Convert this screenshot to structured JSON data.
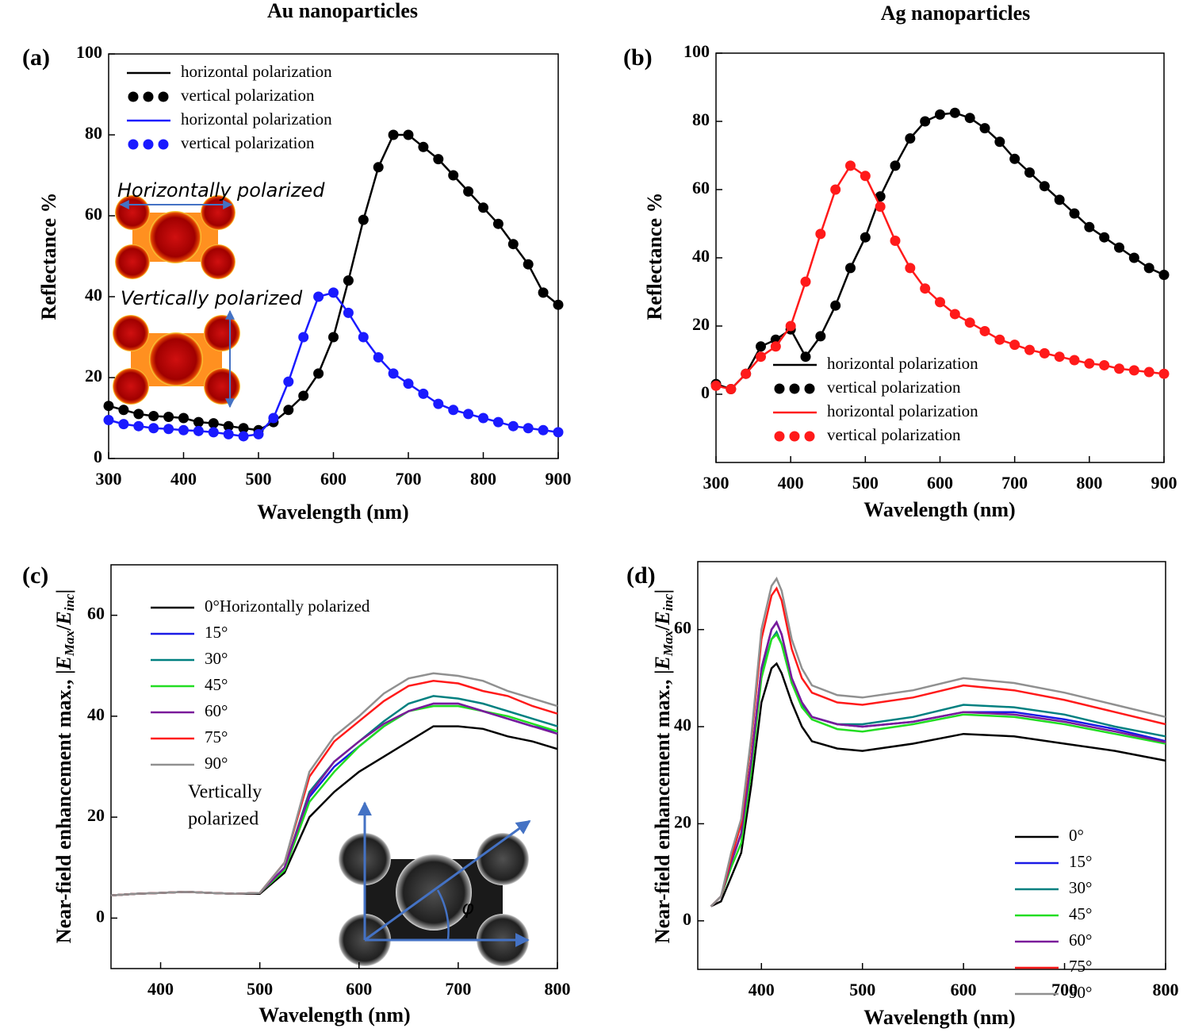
{
  "chart_data": [
    {
      "type": "line",
      "panel_label": "(a)",
      "title": "Au nanoparticles",
      "xlabel": "Wavelength (nm)",
      "ylabel": [
        "Reflectance %"
      ],
      "x": [
        300,
        320,
        340,
        360,
        380,
        400,
        420,
        440,
        460,
        480,
        500,
        520,
        540,
        560,
        580,
        600,
        620,
        640,
        660,
        680,
        700,
        720,
        740,
        760,
        780,
        800,
        820,
        840,
        860,
        880,
        900
      ],
      "xlim": [
        300,
        900
      ],
      "ylim": [
        0,
        100
      ],
      "xticks": [
        300,
        400,
        500,
        600,
        700,
        800,
        900
      ],
      "yticks": [
        0,
        20,
        40,
        60,
        80,
        100
      ],
      "series": [
        {
          "name": "horizontal polarization",
          "color": "#000000",
          "style": "line",
          "values": [
            13,
            12,
            11,
            10.5,
            10.3,
            10,
            9,
            8.7,
            8,
            7.5,
            7,
            9,
            12,
            15.5,
            21,
            30,
            44,
            59,
            72,
            80,
            80,
            77,
            74,
            70,
            66,
            62,
            58,
            53,
            48,
            41,
            38
          ]
        },
        {
          "name": "vertical polarization",
          "color": "#000000",
          "style": "markers",
          "values": [
            13,
            12,
            11,
            10.5,
            10.3,
            10,
            9,
            8.7,
            8,
            7.5,
            7,
            9,
            12,
            15.5,
            21,
            30,
            44,
            59,
            72,
            80,
            80,
            77,
            74,
            70,
            66,
            62,
            58,
            53,
            48,
            41,
            38
          ]
        },
        {
          "name": "horizontal polarization",
          "color": "#1a1aff",
          "style": "line",
          "values": [
            9.5,
            8.5,
            8,
            7.5,
            7.3,
            7,
            6.8,
            6.5,
            6,
            5.5,
            6,
            10,
            19,
            30,
            40,
            41,
            36,
            30,
            25,
            21,
            18.5,
            16,
            13.5,
            12,
            11,
            10,
            9,
            8,
            7.5,
            7,
            6.5
          ]
        },
        {
          "name": "vertical polarization",
          "color": "#1a1aff",
          "style": "markers",
          "values": [
            9.5,
            8.5,
            8,
            7.5,
            7.3,
            7,
            6.8,
            6.5,
            6,
            5.5,
            6,
            10,
            19,
            30,
            40,
            41,
            36,
            30,
            25,
            21,
            18.5,
            16,
            13.5,
            12,
            11,
            10,
            9,
            8,
            7.5,
            7,
            6.5
          ]
        }
      ],
      "annotations": [
        "Horizontally polarized",
        "Vertically polarized"
      ]
    },
    {
      "type": "line",
      "panel_label": "(b)",
      "title": "Ag nanoparticles",
      "xlabel": "Wavelength (nm)",
      "ylabel": [
        "Reflectance %"
      ],
      "x": [
        300,
        320,
        340,
        360,
        380,
        400,
        420,
        440,
        460,
        480,
        500,
        520,
        540,
        560,
        580,
        600,
        620,
        640,
        660,
        680,
        700,
        720,
        740,
        760,
        780,
        800,
        820,
        840,
        860,
        880,
        900
      ],
      "xlim": [
        300,
        900
      ],
      "ylim": [
        -20,
        100
      ],
      "xticks": [
        300,
        400,
        500,
        600,
        700,
        800,
        900
      ],
      "yticks": [
        0,
        20,
        40,
        60,
        80,
        100
      ],
      "series": [
        {
          "name": "horizontal polarization",
          "color": "#000000",
          "style": "line",
          "values": [
            3,
            1.5,
            6,
            14,
            16,
            19,
            11,
            17,
            26,
            37,
            46,
            58,
            67,
            75,
            80,
            82,
            82.5,
            81,
            78,
            74,
            69,
            65,
            61,
            57,
            53,
            49,
            46,
            43,
            40,
            37,
            35
          ]
        },
        {
          "name": "vertical polarization",
          "color": "#000000",
          "style": "markers",
          "values": [
            3,
            1.5,
            6,
            14,
            16,
            19,
            11,
            17,
            26,
            37,
            46,
            58,
            67,
            75,
            80,
            82,
            82.5,
            81,
            78,
            74,
            69,
            65,
            61,
            57,
            53,
            49,
            46,
            43,
            40,
            37,
            35
          ]
        },
        {
          "name": "horizontal polarization",
          "color": "#ff1a1a",
          "style": "line",
          "values": [
            2.5,
            1.5,
            6,
            11,
            14,
            20,
            33,
            47,
            60,
            67,
            64,
            55,
            45,
            37,
            31,
            27,
            23.5,
            21,
            18.5,
            16,
            14.5,
            13,
            12,
            11,
            10,
            9,
            8.5,
            7.5,
            7,
            6.5,
            6
          ]
        },
        {
          "name": "vertical polarization",
          "color": "#ff1a1a",
          "style": "markers",
          "values": [
            2.5,
            1.5,
            6,
            11,
            14,
            20,
            33,
            47,
            60,
            67,
            64,
            55,
            45,
            37,
            31,
            27,
            23.5,
            21,
            18.5,
            16,
            14.5,
            13,
            12,
            11,
            10,
            9,
            8.5,
            7.5,
            7,
            6.5,
            6
          ]
        }
      ]
    },
    {
      "type": "line",
      "panel_label": "(c)",
      "xlabel": "Wavelength (nm)",
      "ylabel": [
        "Near-field enhancement max., |",
        "E",
        "Max",
        "/",
        "E",
        "inc",
        "|"
      ],
      "x": [
        350,
        375,
        400,
        425,
        450,
        475,
        500,
        525,
        550,
        575,
        600,
        625,
        650,
        675,
        700,
        725,
        750,
        775,
        800
      ],
      "xlim": [
        350,
        800
      ],
      "ylim": [
        -10,
        70
      ],
      "xticks": [
        400,
        500,
        600,
        700,
        800
      ],
      "yticks": [
        0,
        20,
        40,
        60
      ],
      "series": [
        {
          "name": "0°Horizontally polarized",
          "color": "#000000",
          "style": "line",
          "values": [
            4.5,
            4.8,
            5,
            5.2,
            5,
            4.8,
            4.8,
            9,
            20,
            25,
            29,
            32,
            35,
            38,
            38,
            37.5,
            36,
            35,
            33.5
          ]
        },
        {
          "name": "15°",
          "color": "#1a1ae6",
          "style": "line",
          "values": [
            4.5,
            4.8,
            5,
            5.2,
            5,
            4.8,
            5,
            10,
            24,
            30,
            34,
            38,
            41,
            42.5,
            42.5,
            41,
            39.5,
            38,
            37
          ]
        },
        {
          "name": "30°",
          "color": "#008080",
          "style": "line",
          "values": [
            4.5,
            4.8,
            5,
            5.2,
            5,
            4.8,
            5,
            10,
            25,
            31,
            35,
            39,
            42.5,
            44,
            43.5,
            42.5,
            41,
            39.5,
            38
          ]
        },
        {
          "name": "45°",
          "color": "#22dd22",
          "style": "line",
          "values": [
            4.5,
            4.8,
            5,
            5.2,
            5,
            4.8,
            5,
            9.5,
            23,
            29,
            34,
            38,
            41,
            42,
            42,
            41,
            40,
            38.5,
            37
          ]
        },
        {
          "name": "60°",
          "color": "#7a1a9a",
          "style": "line",
          "values": [
            4.5,
            4.8,
            5,
            5.2,
            5,
            4.8,
            5,
            10,
            24.5,
            31,
            35,
            38.5,
            41,
            42.5,
            42.5,
            41,
            39.5,
            38,
            36.5
          ]
        },
        {
          "name": "75°",
          "color": "#ff1a1a",
          "style": "line",
          "values": [
            4.5,
            4.8,
            5,
            5.2,
            5,
            4.8,
            5,
            11,
            28,
            35,
            39,
            43,
            46,
            47,
            46.5,
            45,
            44,
            42,
            40.5
          ]
        },
        {
          "name": "90°",
          "color": "#909090",
          "style": "line",
          "values": [
            4.5,
            4.8,
            5,
            5.2,
            5,
            4.8,
            5,
            11,
            29,
            36,
            40,
            44.5,
            47.5,
            48.5,
            48,
            47,
            45,
            43.5,
            42
          ]
        }
      ],
      "annotations": [
        "Vertically",
        "polarized",
        "φ"
      ]
    },
    {
      "type": "line",
      "panel_label": "(d)",
      "xlabel": "Wavelength (nm)",
      "ylabel": [
        "Near-field enhancement max., |",
        "E",
        "Max",
        "/",
        "E",
        "inc",
        "|"
      ],
      "x": [
        350,
        360,
        370,
        380,
        390,
        400,
        410,
        415,
        420,
        430,
        440,
        450,
        475,
        500,
        550,
        600,
        650,
        700,
        750,
        800
      ],
      "xlim": [
        337,
        800
      ],
      "ylim": [
        -10,
        74
      ],
      "xticks": [
        400,
        500,
        600,
        700,
        800
      ],
      "yticks": [
        0,
        20,
        40,
        60
      ],
      "series": [
        {
          "name": "0°",
          "color": "#000000",
          "style": "line",
          "values": [
            3,
            4,
            9,
            14,
            28,
            45,
            52,
            53,
            51,
            45,
            40,
            37,
            35.5,
            35,
            36.5,
            38.5,
            38,
            36.5,
            35,
            33
          ]
        },
        {
          "name": "15°",
          "color": "#1a1ae6",
          "style": "line",
          "values": [
            3,
            5,
            12,
            18,
            33,
            52,
            60,
            61.5,
            59,
            50,
            45,
            42,
            40.5,
            40,
            41,
            43,
            43,
            41.5,
            39.5,
            37
          ]
        },
        {
          "name": "30°",
          "color": "#008080",
          "style": "line",
          "values": [
            3,
            5,
            12,
            18,
            33,
            51,
            58,
            59.5,
            57,
            49,
            44.5,
            42,
            40.5,
            40.5,
            42,
            44.5,
            44,
            42.5,
            40,
            38
          ]
        },
        {
          "name": "45°",
          "color": "#22dd22",
          "style": "line",
          "values": [
            3,
            5,
            11,
            16,
            31,
            50,
            58,
            59,
            57,
            49,
            44,
            41.5,
            39.5,
            39,
            40.5,
            42.5,
            42,
            40.5,
            38.5,
            36.5
          ]
        },
        {
          "name": "60°",
          "color": "#7a1a9a",
          "style": "line",
          "values": [
            3,
            5,
            12,
            18,
            33,
            52,
            60,
            61.5,
            59,
            50,
            45,
            42,
            40.5,
            40,
            41,
            43,
            42.5,
            41,
            39,
            36.8
          ]
        },
        {
          "name": "75°",
          "color": "#ff1a1a",
          "style": "line",
          "values": [
            3,
            5,
            13,
            20,
            37,
            58,
            67,
            68.5,
            66,
            56,
            50,
            47,
            45,
            44.5,
            46,
            48.5,
            47.5,
            45.5,
            43,
            40.5
          ]
        },
        {
          "name": "90°",
          "color": "#909090",
          "style": "line",
          "values": [
            3,
            5,
            14,
            21,
            38,
            60,
            69,
            70.5,
            68,
            58,
            52,
            48.5,
            46.5,
            46,
            47.5,
            50,
            49,
            47,
            44.5,
            42
          ]
        }
      ]
    }
  ]
}
